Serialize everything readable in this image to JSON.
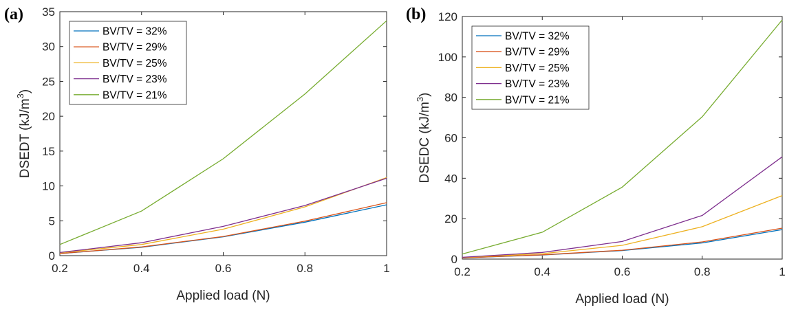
{
  "chart_data": [
    {
      "type": "line",
      "panel_label": "(a)",
      "xlabel": "Applied load (N)",
      "ylabel_main": "DSEDT (kJ/m",
      "ylabel_sup": "3",
      "ylabel_end": ")",
      "xlim": [
        0.2,
        1
      ],
      "ylim": [
        0,
        35
      ],
      "xticks": [
        0.2,
        0.4,
        0.6,
        0.8,
        1
      ],
      "xtick_labels": [
        "0.2",
        "0.4",
        "0.6",
        "0.8",
        "1"
      ],
      "yticks": [
        0,
        5,
        10,
        15,
        20,
        25,
        30,
        35
      ],
      "ytick_labels": [
        "0",
        "5",
        "10",
        "15",
        "20",
        "25",
        "30",
        "35"
      ],
      "grid": false,
      "legend_position": "top-left",
      "x": [
        0.2,
        0.4,
        0.6,
        0.8,
        1
      ],
      "series": [
        {
          "name": "BV/TV = 32%",
          "color": "#0072BD",
          "values": [
            0.3,
            1.2,
            2.7,
            4.8,
            7.3
          ]
        },
        {
          "name": "BV/TV = 29%",
          "color": "#D95319",
          "values": [
            0.3,
            1.25,
            2.75,
            4.95,
            7.6
          ]
        },
        {
          "name": "BV/TV = 25%",
          "color": "#EDB120",
          "values": [
            0.4,
            1.6,
            3.8,
            7.0,
            11.2
          ]
        },
        {
          "name": "BV/TV = 23%",
          "color": "#7E2F8E",
          "values": [
            0.45,
            1.85,
            4.2,
            7.2,
            11.1
          ]
        },
        {
          "name": "BV/TV = 21%",
          "color": "#77AC30",
          "values": [
            1.6,
            6.4,
            13.9,
            23.2,
            33.7
          ]
        }
      ]
    },
    {
      "type": "line",
      "panel_label": "(b)",
      "xlabel": "Applied load (N)",
      "ylabel_main": "DSEDC (kJ/m",
      "ylabel_sup": "3",
      "ylabel_end": ")",
      "xlim": [
        0.2,
        1
      ],
      "ylim": [
        0,
        120
      ],
      "xticks": [
        0.2,
        0.4,
        0.6,
        0.8,
        1
      ],
      "xtick_labels": [
        "0.2",
        "0.4",
        "0.6",
        "0.8",
        "1"
      ],
      "yticks": [
        0,
        20,
        40,
        60,
        80,
        100,
        120
      ],
      "ytick_labels": [
        "0",
        "20",
        "40",
        "60",
        "80",
        "100",
        "120"
      ],
      "grid": false,
      "legend_position": "top-left",
      "x": [
        0.2,
        0.4,
        0.6,
        0.8,
        1
      ],
      "series": [
        {
          "name": "BV/TV = 32%",
          "color": "#0072BD",
          "values": [
            0.6,
            2.0,
            4.2,
            8.0,
            14.6
          ]
        },
        {
          "name": "BV/TV = 29%",
          "color": "#D95319",
          "values": [
            0.6,
            2.1,
            4.4,
            8.5,
            15.3
          ]
        },
        {
          "name": "BV/TV = 25%",
          "color": "#EDB120",
          "values": [
            0.8,
            2.7,
            6.8,
            16.0,
            31.4
          ]
        },
        {
          "name": "BV/TV = 23%",
          "color": "#7E2F8E",
          "values": [
            0.9,
            3.3,
            8.7,
            21.6,
            50.6
          ]
        },
        {
          "name": "BV/TV = 21%",
          "color": "#77AC30",
          "values": [
            2.5,
            13.3,
            35.6,
            70.4,
            118.3
          ]
        }
      ]
    }
  ]
}
